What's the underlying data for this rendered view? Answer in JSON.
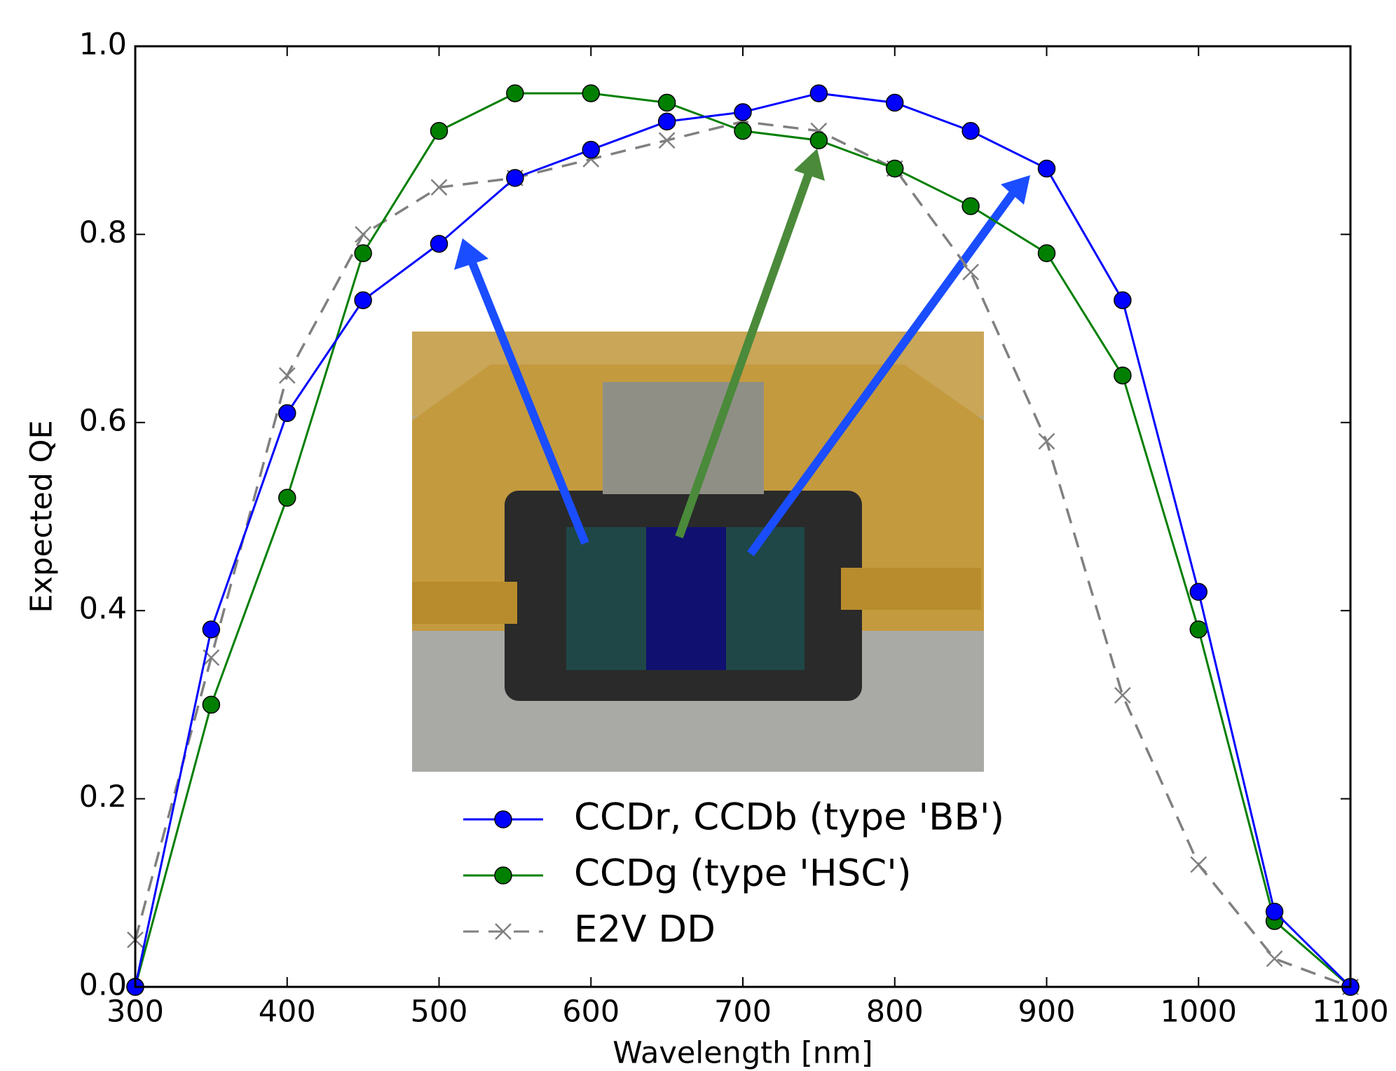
{
  "chart_data": {
    "type": "line",
    "xlabel": "Wavelength [nm]",
    "ylabel": "Expected QE",
    "x": [
      300,
      350,
      400,
      450,
      500,
      550,
      600,
      650,
      700,
      750,
      800,
      850,
      900,
      950,
      1000,
      1050,
      1100
    ],
    "series": [
      {
        "name": "CCDr, CCDb (type 'BB')",
        "color": "#0000ff",
        "marker": "circle",
        "dashed": false,
        "values": [
          0,
          0.38,
          0.61,
          0.73,
          0.79,
          0.86,
          0.89,
          0.92,
          0.93,
          0.95,
          0.94,
          0.91,
          0.87,
          0.73,
          0.42,
          0.08,
          0
        ]
      },
      {
        "name": "CCDg (type 'HSC')",
        "color": "#007f00",
        "marker": "circle",
        "dashed": false,
        "values": [
          0,
          0.3,
          0.52,
          0.78,
          0.91,
          0.95,
          0.95,
          0.94,
          0.91,
          0.9,
          0.87,
          0.83,
          0.78,
          0.65,
          0.38,
          0.07,
          0
        ]
      },
      {
        "name": "E2V DD",
        "color": "#808080",
        "marker": "x",
        "dashed": true,
        "values": [
          0.05,
          0.35,
          0.65,
          0.8,
          0.85,
          0.86,
          0.88,
          0.9,
          0.92,
          0.91,
          0.87,
          0.76,
          0.58,
          0.31,
          0.13,
          0.03,
          0
        ]
      }
    ],
    "xlim": [
      300,
      1100
    ],
    "xticks": [
      300,
      400,
      500,
      600,
      700,
      800,
      900,
      1000,
      1100
    ],
    "ylim": [
      0,
      1
    ],
    "yticks": [
      {
        "value": 0,
        "label": "0.0"
      },
      {
        "value": 0.2,
        "label": "0.2"
      },
      {
        "value": 0.4,
        "label": "0.4"
      },
      {
        "value": 0.6,
        "label": "0.6"
      },
      {
        "value": 0.8,
        "label": "0.8"
      },
      {
        "value": 1,
        "label": "1.0"
      }
    ],
    "legend": "lower center"
  }
}
